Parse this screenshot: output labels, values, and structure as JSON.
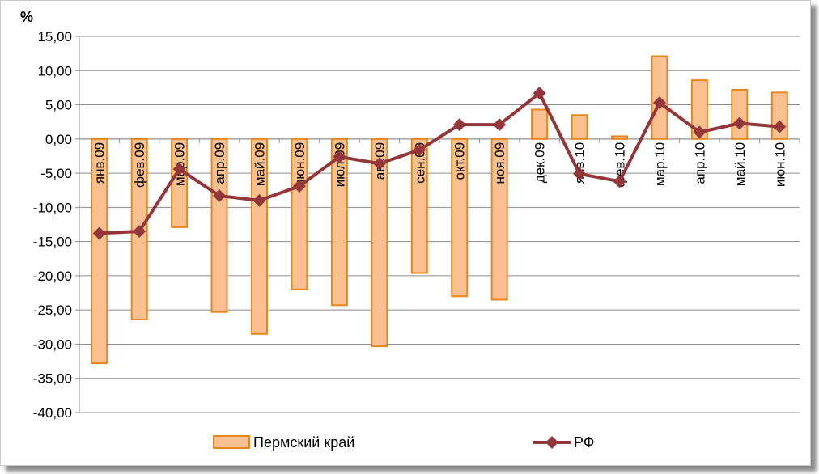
{
  "chart_data": {
    "type": "bar",
    "unit_label": "%",
    "categories": [
      "янв.09",
      "фев.09",
      "мар.09",
      "апр.09",
      "май.09",
      "июн.09",
      "июл.09",
      "авг.09",
      "сен.09",
      "окт.09",
      "ноя.09",
      "дек.09",
      "янв.10",
      "фев.10",
      "мар.10",
      "апр.10",
      "май.10",
      "июн.10"
    ],
    "series": [
      {
        "name": "Пермский край",
        "kind": "bar",
        "color": "#fbc08f",
        "stroke": "#e8871e",
        "values": [
          -32.8,
          -26.4,
          -12.9,
          -25.3,
          -28.5,
          -22.0,
          -24.3,
          -30.3,
          -19.6,
          -23.0,
          -23.5,
          4.3,
          3.5,
          0.4,
          12.1,
          8.6,
          7.2,
          6.8
        ]
      },
      {
        "name": "РФ",
        "kind": "line",
        "color": "#94373a",
        "values": [
          -13.8,
          -13.5,
          -4.4,
          -8.3,
          -9.0,
          -6.9,
          -2.6,
          -3.6,
          -1.6,
          2.1,
          2.1,
          6.7,
          -5.1,
          -6.2,
          5.3,
          1.0,
          2.3,
          1.8
        ]
      }
    ],
    "y_ticks": [
      "15,00",
      "10,00",
      "5,00",
      "0,00",
      "-5,00",
      "-10,00",
      "-15,00",
      "-20,00",
      "-25,00",
      "-30,00",
      "-35,00",
      "-40,00"
    ],
    "ylim": [
      -40,
      15
    ],
    "grid": true,
    "legend_position": "bottom"
  }
}
